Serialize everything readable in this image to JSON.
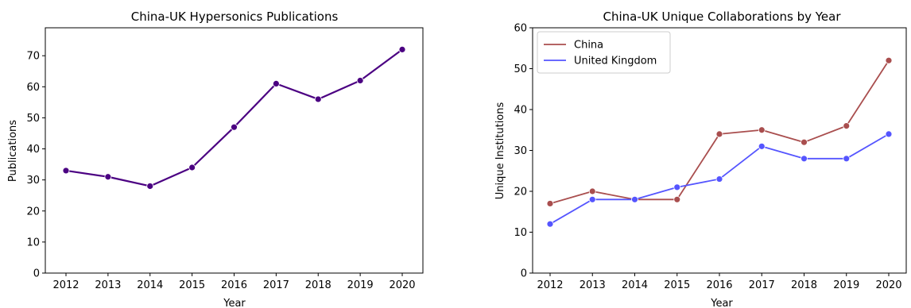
{
  "chart_data": [
    {
      "type": "line",
      "title": "China-UK Hypersonics Publications",
      "xlabel": "Year",
      "ylabel": "Publications",
      "x": [
        "2012",
        "2013",
        "2014",
        "2015",
        "2016",
        "2017",
        "2018",
        "2019",
        "2020"
      ],
      "ylim": [
        0,
        79
      ],
      "yticks": [
        0,
        10,
        20,
        30,
        40,
        50,
        60,
        70
      ],
      "grid": false,
      "series": [
        {
          "name": "",
          "color": "#4b0082",
          "values": [
            33,
            31,
            28,
            34,
            47,
            61,
            56,
            62,
            72
          ]
        }
      ]
    },
    {
      "type": "line",
      "title": "China-UK Unique Collaborations by Year",
      "xlabel": "Year",
      "ylabel": "Unique Institutions",
      "x": [
        "2012",
        "2013",
        "2014",
        "2015",
        "2016",
        "2017",
        "2018",
        "2019",
        "2020"
      ],
      "ylim": [
        0,
        60
      ],
      "yticks": [
        0,
        10,
        20,
        30,
        40,
        50,
        60
      ],
      "grid": false,
      "legend": "top-left",
      "series": [
        {
          "name": "China",
          "color": "#a94e4e",
          "values": [
            17,
            20,
            18,
            18,
            34,
            35,
            32,
            36,
            52
          ]
        },
        {
          "name": "United Kingdom",
          "color": "#5555ff",
          "values": [
            12,
            18,
            18,
            21,
            23,
            31,
            28,
            28,
            34
          ]
        }
      ]
    }
  ]
}
